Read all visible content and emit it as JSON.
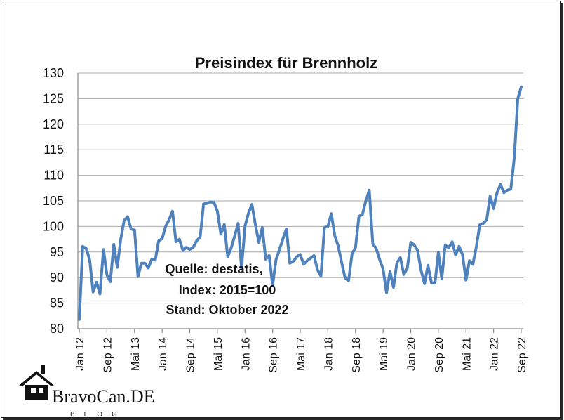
{
  "chart_data": {
    "type": "line",
    "title": "Preisindex für Brennholz",
    "xlabel": "",
    "ylabel": "",
    "ylim": [
      80,
      130
    ],
    "yticks": [
      80,
      85,
      90,
      95,
      100,
      105,
      110,
      115,
      120,
      125,
      130
    ],
    "grid": true,
    "x_tick_labels": [
      "Jan 12",
      "Sep 12",
      "Mai 13",
      "Jan 14",
      "Sep 14",
      "Mai 15",
      "Jan 16",
      "Sep 16",
      "Mai 17",
      "Jan 18",
      "Sep 18",
      "Mai 19",
      "Jan 20",
      "Sep 20",
      "Mai 21",
      "Jan 22",
      "Sep 22"
    ],
    "x_tick_step_months": 8,
    "series": [
      {
        "color": "#4f81bd",
        "values": [
          81.8,
          96.1,
          95.7,
          93.5,
          87.2,
          89.1,
          86.8,
          95.5,
          90.5,
          89.2,
          96.5,
          92.0,
          97.5,
          101.2,
          101.9,
          99.5,
          99.3,
          90.2,
          92.8,
          92.8,
          91.9,
          93.6,
          93.4,
          97.2,
          97.6,
          100.0,
          101.3,
          103.0,
          97.0,
          97.5,
          95.3,
          95.9,
          95.5,
          95.9,
          97.2,
          97.9,
          104.4,
          104.5,
          104.8,
          104.7,
          103.0,
          98.5,
          100.4,
          94.1,
          95.8,
          98.1,
          100.6,
          91.8,
          100.1,
          102.6,
          104.3,
          100.4,
          96.9,
          99.8,
          93.6,
          94.3,
          88.5,
          93.5,
          95.5,
          97.6,
          99.5,
          92.8,
          93.2,
          94.1,
          94.5,
          92.6,
          93.3,
          93.8,
          94.3,
          91.5,
          90.3,
          99.8,
          100.0,
          102.5,
          98.2,
          96.2,
          92.9,
          89.9,
          89.4,
          94.6,
          95.9,
          102.0,
          102.3,
          105.0,
          107.1,
          96.6,
          95.7,
          93.5,
          91.7,
          87.0,
          91.2,
          88.1,
          92.9,
          93.9,
          90.6,
          91.8,
          96.9,
          96.4,
          95.3,
          91.4,
          88.8,
          92.4,
          89.0,
          88.9,
          94.9,
          89.8,
          96.4,
          95.8,
          97.0,
          94.4,
          96.1,
          94.5,
          89.5,
          93.3,
          92.6,
          96.0,
          100.3,
          100.6,
          101.3,
          105.9,
          103.5,
          106.6,
          108.2,
          106.6,
          107.1,
          107.3,
          113.5,
          125.0,
          127.3
        ]
      }
    ],
    "annotation": [
      "Quelle: destatis,",
      "Index: 2015=100",
      "Stand: Oktober  2022"
    ]
  },
  "watermark": {
    "brand": "BravoCan.DE",
    "sub": "BLOG",
    "icon": "house-hammer-icon"
  }
}
